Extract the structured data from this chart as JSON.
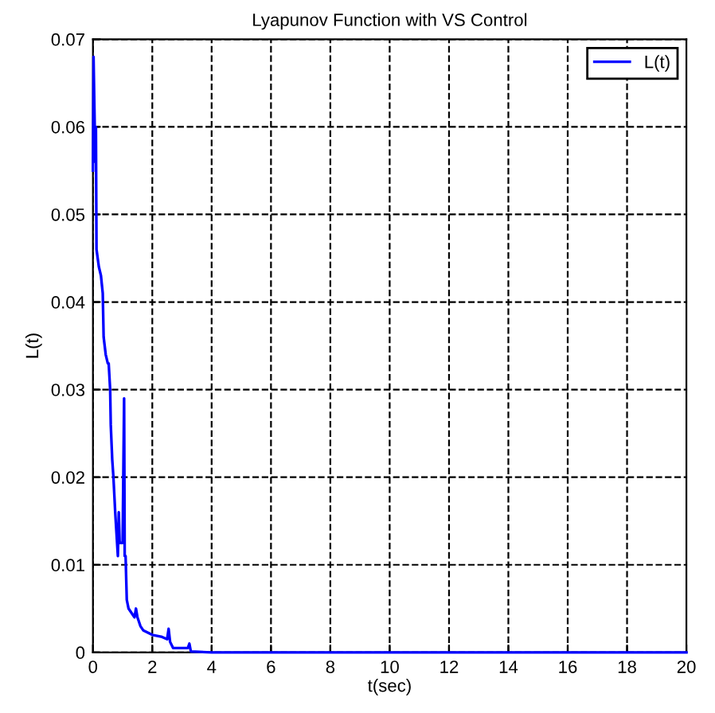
{
  "chart_data": {
    "type": "line",
    "title": "Lyapunov Function with VS Control",
    "xlabel": "t(sec)",
    "ylabel": "L(t)",
    "xlim": [
      0,
      20
    ],
    "ylim": [
      0,
      0.07
    ],
    "xticks": [
      0,
      2,
      4,
      6,
      8,
      10,
      12,
      14,
      16,
      18,
      20
    ],
    "yticks": [
      0,
      0.01,
      0.02,
      0.03,
      0.04,
      0.05,
      0.06,
      0.07
    ],
    "grid": true,
    "legend": "top right",
    "line_style": "solid",
    "series": [
      {
        "name": "L(t)",
        "color": "#0000ff",
        "x": [
          0,
          0.02,
          0.05,
          0.08,
          0.1,
          0.12,
          0.2,
          0.27,
          0.33,
          0.36,
          0.43,
          0.5,
          0.53,
          0.58,
          0.6,
          0.65,
          0.69,
          0.75,
          0.84,
          0.87,
          0.9,
          0.95,
          1.0,
          1.05,
          1.07,
          1.1,
          1.14,
          1.2,
          1.3,
          1.4,
          1.45,
          1.5,
          1.6,
          1.7,
          2.0,
          2.3,
          2.5,
          2.55,
          2.6,
          2.7,
          3.2,
          3.25,
          3.3,
          4,
          20
        ],
        "values": [
          0.055,
          0.068,
          0.062,
          0.056,
          0.06,
          0.046,
          0.044,
          0.043,
          0.041,
          0.036,
          0.034,
          0.033,
          0.033,
          0.03,
          0.026,
          0.022,
          0.02,
          0.016,
          0.011,
          0.016,
          0.0125,
          0.0125,
          0.0125,
          0.029,
          0.011,
          0.011,
          0.006,
          0.005,
          0.0045,
          0.004,
          0.005,
          0.004,
          0.003,
          0.0025,
          0.002,
          0.0018,
          0.0015,
          0.0027,
          0.0012,
          0.0005,
          0.0005,
          0.001,
          0.0001,
          0,
          0
        ]
      }
    ]
  }
}
